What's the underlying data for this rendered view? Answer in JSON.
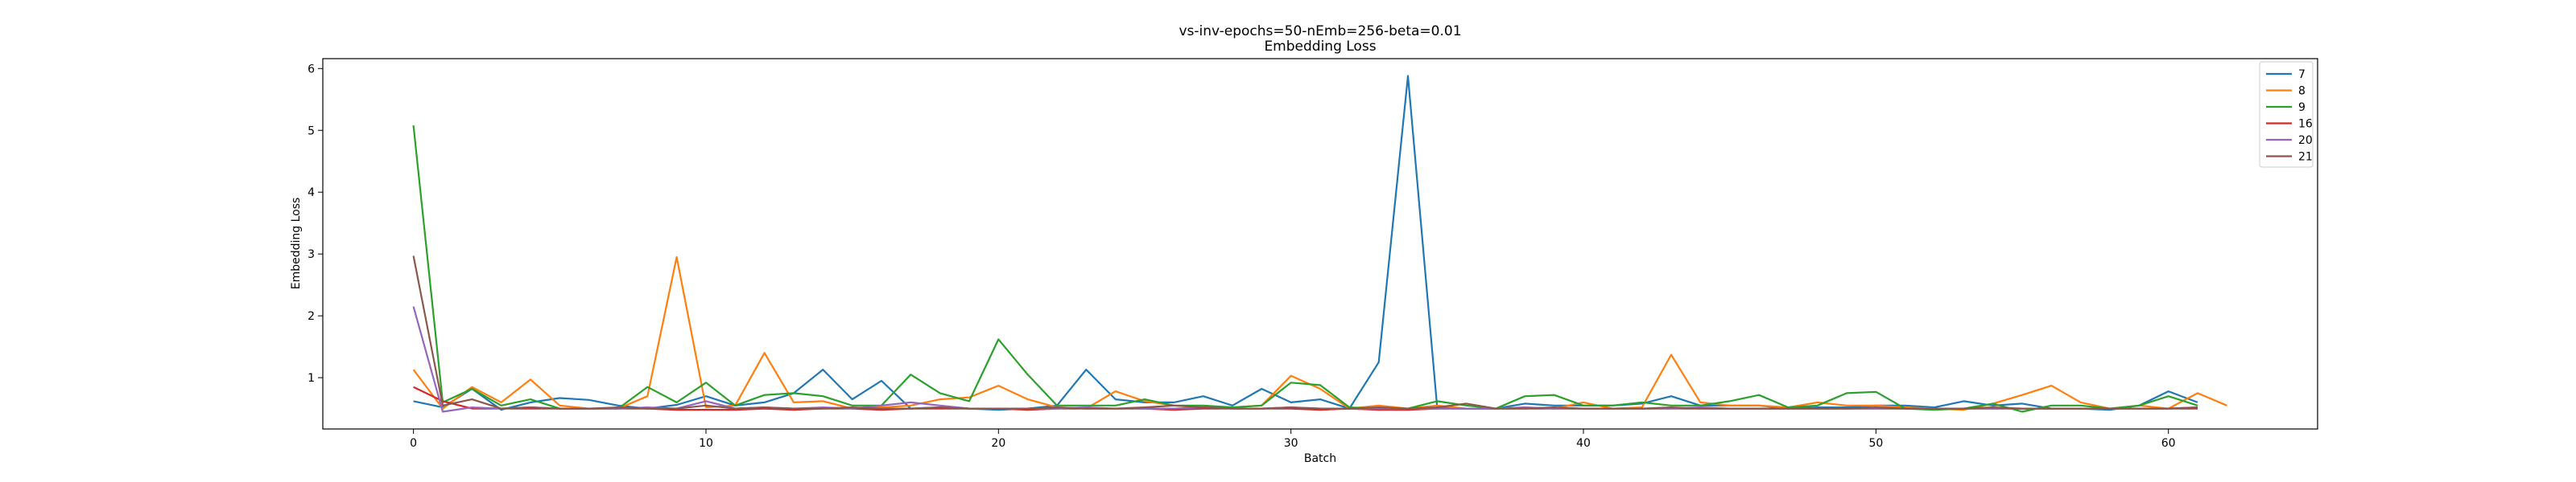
{
  "chart_data": {
    "type": "line",
    "title": "vs-inv-epochs=50-nEmb=256-beta=0.01",
    "subtitle": "Embedding Loss",
    "xlabel": "Batch",
    "ylabel": "Embedding Loss",
    "xlim": [
      -3.1,
      65.1
    ],
    "ylim": [
      0.17,
      6.16
    ],
    "xticks": [
      0,
      10,
      20,
      30,
      40,
      50,
      60
    ],
    "yticks": [
      1,
      2,
      3,
      4,
      5,
      6
    ],
    "grid": false,
    "legend_position": "top-right",
    "series": [
      {
        "name": "7",
        "color": "#1f77b4",
        "x": [
          0,
          1,
          2,
          3,
          4,
          5,
          6,
          7,
          8,
          9,
          10,
          11,
          12,
          13,
          14,
          15,
          16,
          17,
          18,
          19,
          20,
          21,
          22,
          23,
          24,
          25,
          26,
          27,
          28,
          29,
          30,
          31,
          32,
          33,
          34,
          35,
          36,
          37,
          38,
          39,
          40,
          41,
          42,
          43,
          44,
          45,
          46,
          47,
          48,
          49,
          50,
          51,
          52,
          53,
          54,
          55,
          56,
          57,
          58,
          59,
          60,
          61
        ],
        "y": [
          0.62,
          0.52,
          0.82,
          0.48,
          0.6,
          0.67,
          0.64,
          0.55,
          0.5,
          0.56,
          0.7,
          0.55,
          0.6,
          0.75,
          1.13,
          0.65,
          0.95,
          0.5,
          0.52,
          0.5,
          0.48,
          0.5,
          0.55,
          1.13,
          0.65,
          0.6,
          0.6,
          0.7,
          0.55,
          0.82,
          0.6,
          0.65,
          0.5,
          1.25,
          5.88,
          0.52,
          0.5,
          0.5,
          0.58,
          0.55,
          0.55,
          0.55,
          0.58,
          0.7,
          0.55,
          0.55,
          0.55,
          0.5,
          0.52,
          0.52,
          0.55,
          0.55,
          0.52,
          0.62,
          0.55,
          0.58,
          0.5,
          0.5,
          0.48,
          0.55,
          0.78,
          0.6
        ]
      },
      {
        "name": "8",
        "color": "#ff7f0e",
        "x": [
          0,
          1,
          2,
          3,
          4,
          5,
          6,
          7,
          8,
          9,
          10,
          11,
          12,
          13,
          14,
          15,
          16,
          17,
          18,
          19,
          20,
          21,
          22,
          23,
          24,
          25,
          26,
          27,
          28,
          29,
          30,
          31,
          32,
          33,
          34,
          35,
          36,
          37,
          38,
          39,
          40,
          41,
          42,
          43,
          44,
          45,
          46,
          47,
          48,
          49,
          50,
          51,
          52,
          53,
          54,
          55,
          56,
          57,
          58,
          59,
          60,
          61,
          62
        ],
        "y": [
          1.13,
          0.5,
          0.85,
          0.6,
          0.97,
          0.55,
          0.5,
          0.5,
          0.7,
          2.95,
          0.52,
          0.55,
          1.4,
          0.6,
          0.62,
          0.5,
          0.52,
          0.55,
          0.65,
          0.68,
          0.87,
          0.65,
          0.52,
          0.5,
          0.78,
          0.62,
          0.55,
          0.52,
          0.52,
          0.55,
          1.03,
          0.82,
          0.5,
          0.55,
          0.5,
          0.55,
          0.5,
          0.5,
          0.52,
          0.5,
          0.6,
          0.5,
          0.52,
          1.37,
          0.6,
          0.55,
          0.55,
          0.52,
          0.6,
          0.55,
          0.55,
          0.52,
          0.5,
          0.48,
          0.58,
          0.72,
          0.87,
          0.6,
          0.5,
          0.55,
          0.5,
          0.75,
          0.55
        ]
      },
      {
        "name": "9",
        "color": "#2ca02c",
        "x": [
          0,
          1,
          2,
          3,
          4,
          5,
          6,
          7,
          8,
          9,
          10,
          11,
          12,
          13,
          14,
          15,
          16,
          17,
          18,
          19,
          20,
          21,
          22,
          23,
          24,
          25,
          26,
          27,
          28,
          29,
          30,
          31,
          32,
          33,
          34,
          35,
          36,
          37,
          38,
          39,
          40,
          41,
          42,
          43,
          44,
          45,
          46,
          47,
          48,
          49,
          50,
          51,
          52,
          53,
          54,
          55,
          56,
          57,
          58,
          59,
          60,
          61
        ],
        "y": [
          5.08,
          0.6,
          0.82,
          0.55,
          0.65,
          0.5,
          0.5,
          0.5,
          0.85,
          0.6,
          0.92,
          0.55,
          0.72,
          0.75,
          0.7,
          0.55,
          0.55,
          1.05,
          0.75,
          0.62,
          1.62,
          1.05,
          0.55,
          0.55,
          0.55,
          0.65,
          0.55,
          0.55,
          0.52,
          0.55,
          0.92,
          0.88,
          0.52,
          0.5,
          0.5,
          0.62,
          0.55,
          0.5,
          0.7,
          0.72,
          0.55,
          0.55,
          0.6,
          0.55,
          0.55,
          0.62,
          0.72,
          0.52,
          0.55,
          0.75,
          0.77,
          0.5,
          0.48,
          0.5,
          0.58,
          0.45,
          0.55,
          0.55,
          0.5,
          0.55,
          0.7,
          0.55
        ]
      },
      {
        "name": "16",
        "color": "#d62728",
        "x": [
          0,
          1,
          2,
          3,
          4,
          5,
          6,
          7,
          8,
          9,
          10,
          11,
          12,
          13,
          14,
          15,
          16,
          17,
          18,
          19,
          20,
          21,
          22,
          23,
          24,
          25,
          26,
          27,
          28,
          29,
          30,
          31,
          32,
          33,
          34,
          35,
          36,
          37,
          38,
          39,
          40,
          41,
          42,
          43,
          44,
          45,
          46,
          47,
          48,
          49,
          50,
          51,
          52,
          53,
          54,
          55,
          56,
          57,
          58,
          59,
          60,
          61
        ],
        "y": [
          0.85,
          0.62,
          0.5,
          0.5,
          0.5,
          0.5,
          0.5,
          0.5,
          0.5,
          0.48,
          0.48,
          0.48,
          0.5,
          0.48,
          0.5,
          0.5,
          0.48,
          0.5,
          0.5,
          0.5,
          0.5,
          0.48,
          0.5,
          0.5,
          0.5,
          0.5,
          0.48,
          0.5,
          0.5,
          0.5,
          0.5,
          0.48,
          0.5,
          0.48,
          0.48,
          0.5,
          0.5,
          0.5,
          0.5,
          0.5,
          0.5,
          0.5,
          0.5,
          0.5,
          0.5,
          0.5,
          0.5,
          0.5,
          0.5,
          0.5,
          0.5,
          0.5,
          0.5,
          0.5,
          0.5,
          0.5,
          0.5,
          0.5,
          0.5,
          0.5,
          0.5,
          0.5
        ]
      },
      {
        "name": "20",
        "color": "#9467bd",
        "x": [
          0,
          1,
          2,
          3,
          4,
          5,
          6,
          7,
          8,
          9,
          10,
          11,
          12,
          13,
          14,
          15,
          16,
          17,
          18,
          19,
          20,
          21,
          22,
          23,
          24,
          25,
          26,
          27,
          28,
          29,
          30,
          31,
          32,
          33,
          34,
          35,
          36,
          37,
          38,
          39,
          40,
          41,
          42,
          43,
          44,
          45,
          46,
          47,
          48,
          49,
          50,
          51,
          52,
          53,
          54,
          55,
          56,
          57,
          58,
          59,
          60,
          61
        ],
        "y": [
          2.15,
          0.45,
          0.52,
          0.5,
          0.52,
          0.5,
          0.5,
          0.5,
          0.52,
          0.5,
          0.62,
          0.5,
          0.52,
          0.5,
          0.52,
          0.5,
          0.55,
          0.6,
          0.55,
          0.5,
          0.5,
          0.5,
          0.5,
          0.52,
          0.5,
          0.5,
          0.5,
          0.52,
          0.5,
          0.5,
          0.52,
          0.5,
          0.5,
          0.5,
          0.5,
          0.5,
          0.5,
          0.5,
          0.52,
          0.5,
          0.5,
          0.5,
          0.5,
          0.5,
          0.52,
          0.5,
          0.5,
          0.5,
          0.5,
          0.5,
          0.5,
          0.5,
          0.5,
          0.5,
          0.5,
          0.5,
          0.5,
          0.5,
          0.5,
          0.5,
          0.5,
          0.52
        ]
      },
      {
        "name": "21",
        "color": "#8c564b",
        "x": [
          0,
          1,
          2,
          3,
          4,
          5,
          6,
          7,
          8,
          9,
          10,
          11,
          12,
          13,
          14,
          15,
          16,
          17,
          18,
          19,
          20,
          21,
          22,
          23,
          24,
          25,
          26,
          27,
          28,
          29,
          30,
          31,
          32,
          33,
          34,
          35,
          36,
          37,
          38,
          39,
          40,
          41,
          42,
          43,
          44,
          45,
          46,
          47,
          48,
          49,
          50,
          51,
          52,
          53,
          54,
          55,
          56,
          57,
          58,
          59,
          60,
          61
        ],
        "y": [
          2.97,
          0.55,
          0.65,
          0.5,
          0.52,
          0.5,
          0.5,
          0.52,
          0.5,
          0.5,
          0.55,
          0.5,
          0.52,
          0.5,
          0.5,
          0.52,
          0.5,
          0.5,
          0.52,
          0.5,
          0.5,
          0.5,
          0.52,
          0.5,
          0.5,
          0.52,
          0.55,
          0.52,
          0.5,
          0.5,
          0.52,
          0.5,
          0.5,
          0.52,
          0.5,
          0.52,
          0.58,
          0.5,
          0.5,
          0.52,
          0.5,
          0.5,
          0.5,
          0.52,
          0.5,
          0.5,
          0.5,
          0.5,
          0.5,
          0.5,
          0.52,
          0.5,
          0.5,
          0.5,
          0.52,
          0.5,
          0.5,
          0.5,
          0.5,
          0.5,
          0.5,
          0.52
        ]
      }
    ]
  }
}
